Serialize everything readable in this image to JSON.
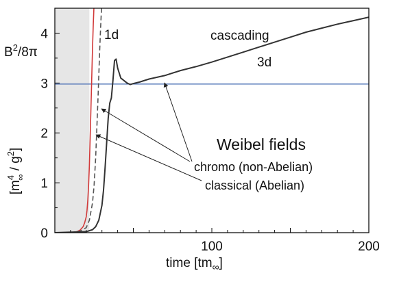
{
  "chart_data": {
    "type": "line",
    "title": "",
    "xlabel": "time    [tm",
    "xlabel_sub": "∞",
    "xlabel_close": "]",
    "ylabel": "[m",
    "ylabel_sup": "4",
    "ylabel_sub": "∞",
    "ylabel_rest": " / g",
    "ylabel_sup2": "2",
    "ylabel_close": "]",
    "ylabel_quantity_main": "B",
    "ylabel_quantity_sup": "2",
    "ylabel_quantity_rest": "/8π",
    "xlim": [
      0,
      200
    ],
    "ylim": [
      0,
      4.5
    ],
    "x_ticks": [
      100,
      200
    ],
    "y_ticks": [
      0,
      1,
      2,
      3,
      4
    ],
    "shaded_region_x": [
      0,
      22
    ],
    "reference_line_y": 2.98,
    "colors": {
      "shade": "#e6e6e6",
      "classical": "#d13a3a",
      "dashed": "#555555",
      "chromo": "#333333",
      "reference": "#4a6fb5",
      "arrow": "#222222"
    },
    "series": [
      {
        "key": "classical",
        "style": "solid",
        "x": [
          0,
          10,
          14,
          16,
          18,
          19,
          20,
          20.5,
          21,
          21.5,
          22,
          22.5,
          23,
          23.5,
          24,
          24.5,
          25
        ],
        "y": [
          0,
          0,
          0.02,
          0.05,
          0.12,
          0.2,
          0.32,
          0.45,
          0.65,
          0.95,
          1.35,
          1.9,
          2.5,
          3.1,
          3.7,
          4.2,
          4.6
        ]
      },
      {
        "key": "dashed",
        "style": "dashed",
        "x": [
          0,
          10,
          16,
          20,
          22,
          24,
          25,
          26,
          26.5,
          27,
          27.5,
          28,
          28.5,
          29,
          29.5,
          30
        ],
        "y": [
          0,
          0,
          0.03,
          0.1,
          0.25,
          0.6,
          0.95,
          1.5,
          1.9,
          2.3,
          2.7,
          3.15,
          3.6,
          4.0,
          4.35,
          4.6
        ]
      },
      {
        "key": "chromo",
        "style": "solid",
        "x": [
          0,
          20,
          24,
          26,
          28,
          30,
          31,
          32,
          33,
          34,
          35,
          36,
          37,
          38,
          39,
          40,
          41,
          42,
          44,
          46,
          48,
          50,
          54,
          60,
          70,
          80,
          90,
          100,
          110,
          120,
          130,
          140,
          150,
          160,
          170,
          180,
          190,
          200
        ],
        "y": [
          0,
          0.02,
          0.06,
          0.12,
          0.25,
          0.55,
          0.85,
          1.3,
          1.8,
          2.3,
          2.6,
          2.7,
          3.05,
          3.45,
          3.48,
          3.3,
          3.2,
          3.1,
          3.05,
          3.0,
          2.97,
          2.99,
          3.02,
          3.08,
          3.15,
          3.25,
          3.33,
          3.42,
          3.52,
          3.62,
          3.72,
          3.82,
          3.92,
          4.02,
          4.1,
          4.18,
          4.25,
          4.32
        ]
      }
    ],
    "annotations": {
      "label_1d": "1d",
      "label_cascading": "cascading",
      "label_3d": "3d",
      "label_weibel": "Weibel fields",
      "label_chromo": "chromo (non-Abelian)",
      "label_classical": "classical (Abelian)"
    }
  }
}
